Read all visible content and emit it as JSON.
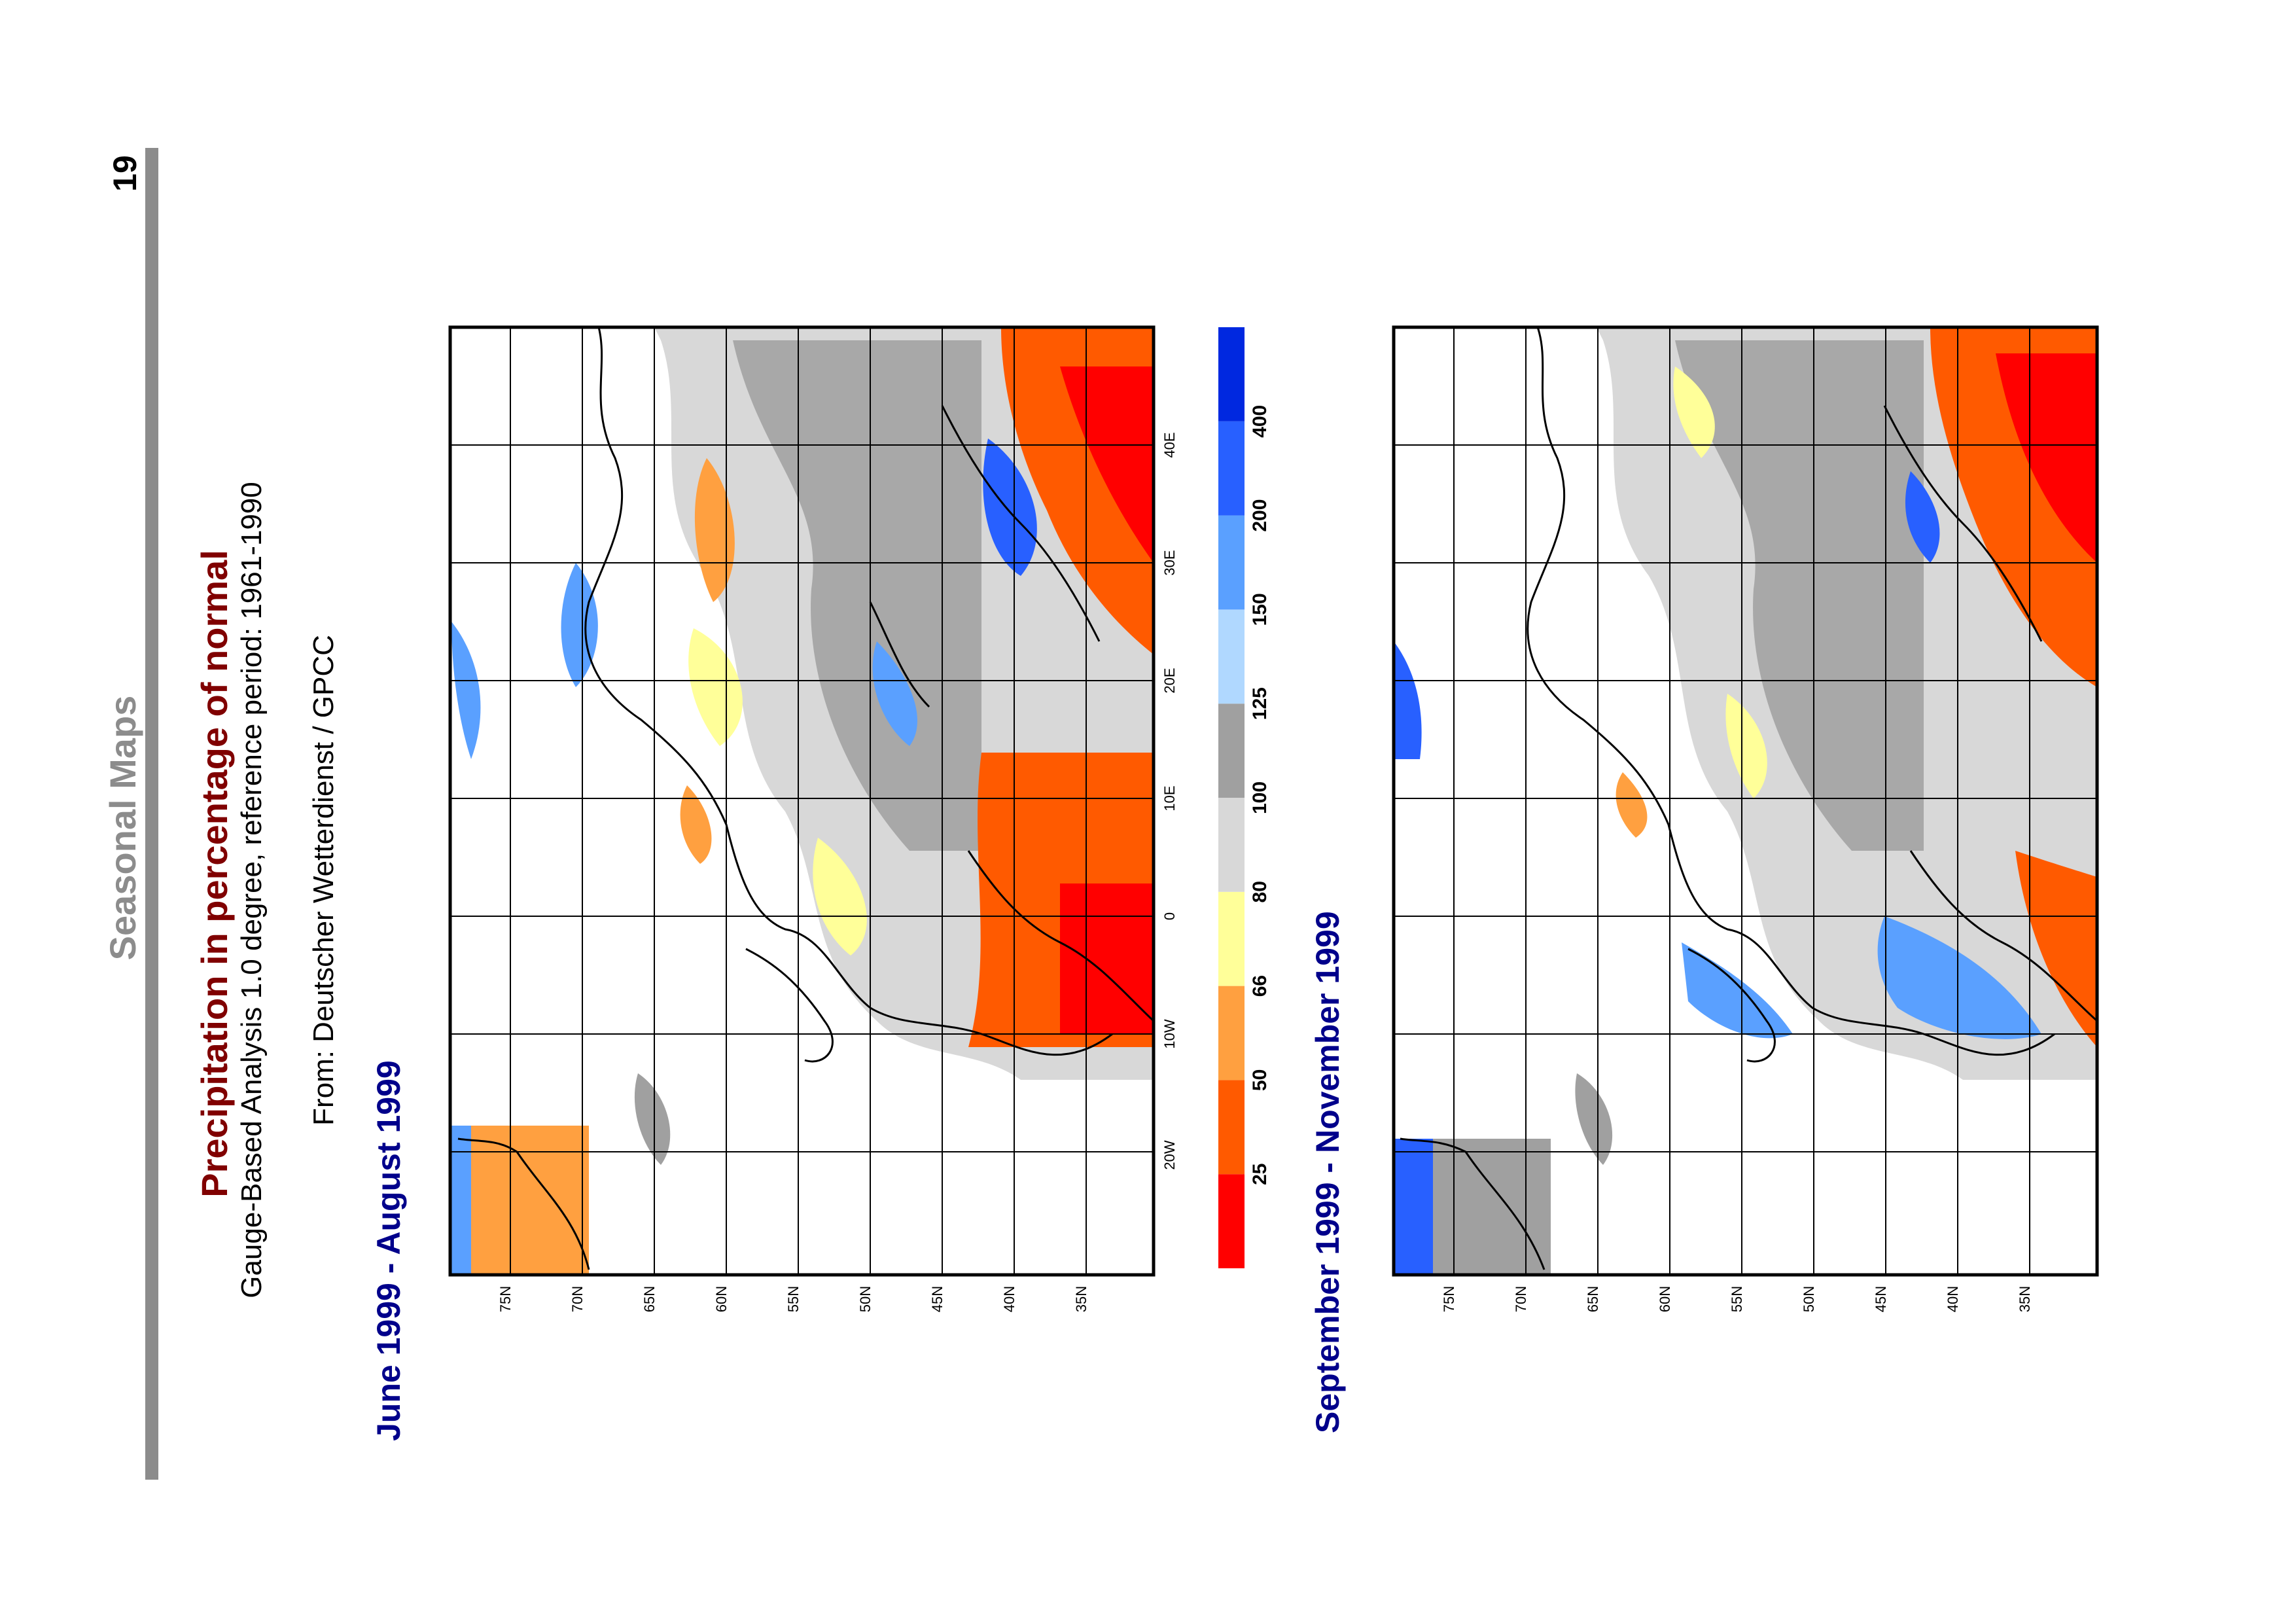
{
  "page": {
    "number": "19",
    "section": "Seasonal Maps"
  },
  "title": "Precipitation in percentage of normal",
  "subtitle": "Gauge-Based Analysis 1.0 degree, reference period: 1961-1990",
  "source": "From: Deutscher Wetterdienst / GPCC",
  "maps": [
    {
      "caption": "June 1999 - August 1999"
    },
    {
      "caption": "September 1999 - November 1999"
    }
  ],
  "latitude_labels": [
    "75N",
    "70N",
    "65N",
    "60N",
    "55N",
    "50N",
    "45N",
    "40N",
    "35N"
  ],
  "longitude_labels": [
    "20W",
    "10W",
    "0",
    "10E",
    "20E",
    "30E",
    "40E"
  ],
  "legend": {
    "labels": [
      "25",
      "50",
      "66",
      "80",
      "100",
      "125",
      "150",
      "200",
      "400"
    ],
    "colors": [
      "#ff0000",
      "#ff5a00",
      "#ffa040",
      "#ffff99",
      "#d8d8d8",
      "#a0a0a0",
      "#b0d8ff",
      "#5aa0ff",
      "#2860ff",
      "#0028e0"
    ]
  }
}
